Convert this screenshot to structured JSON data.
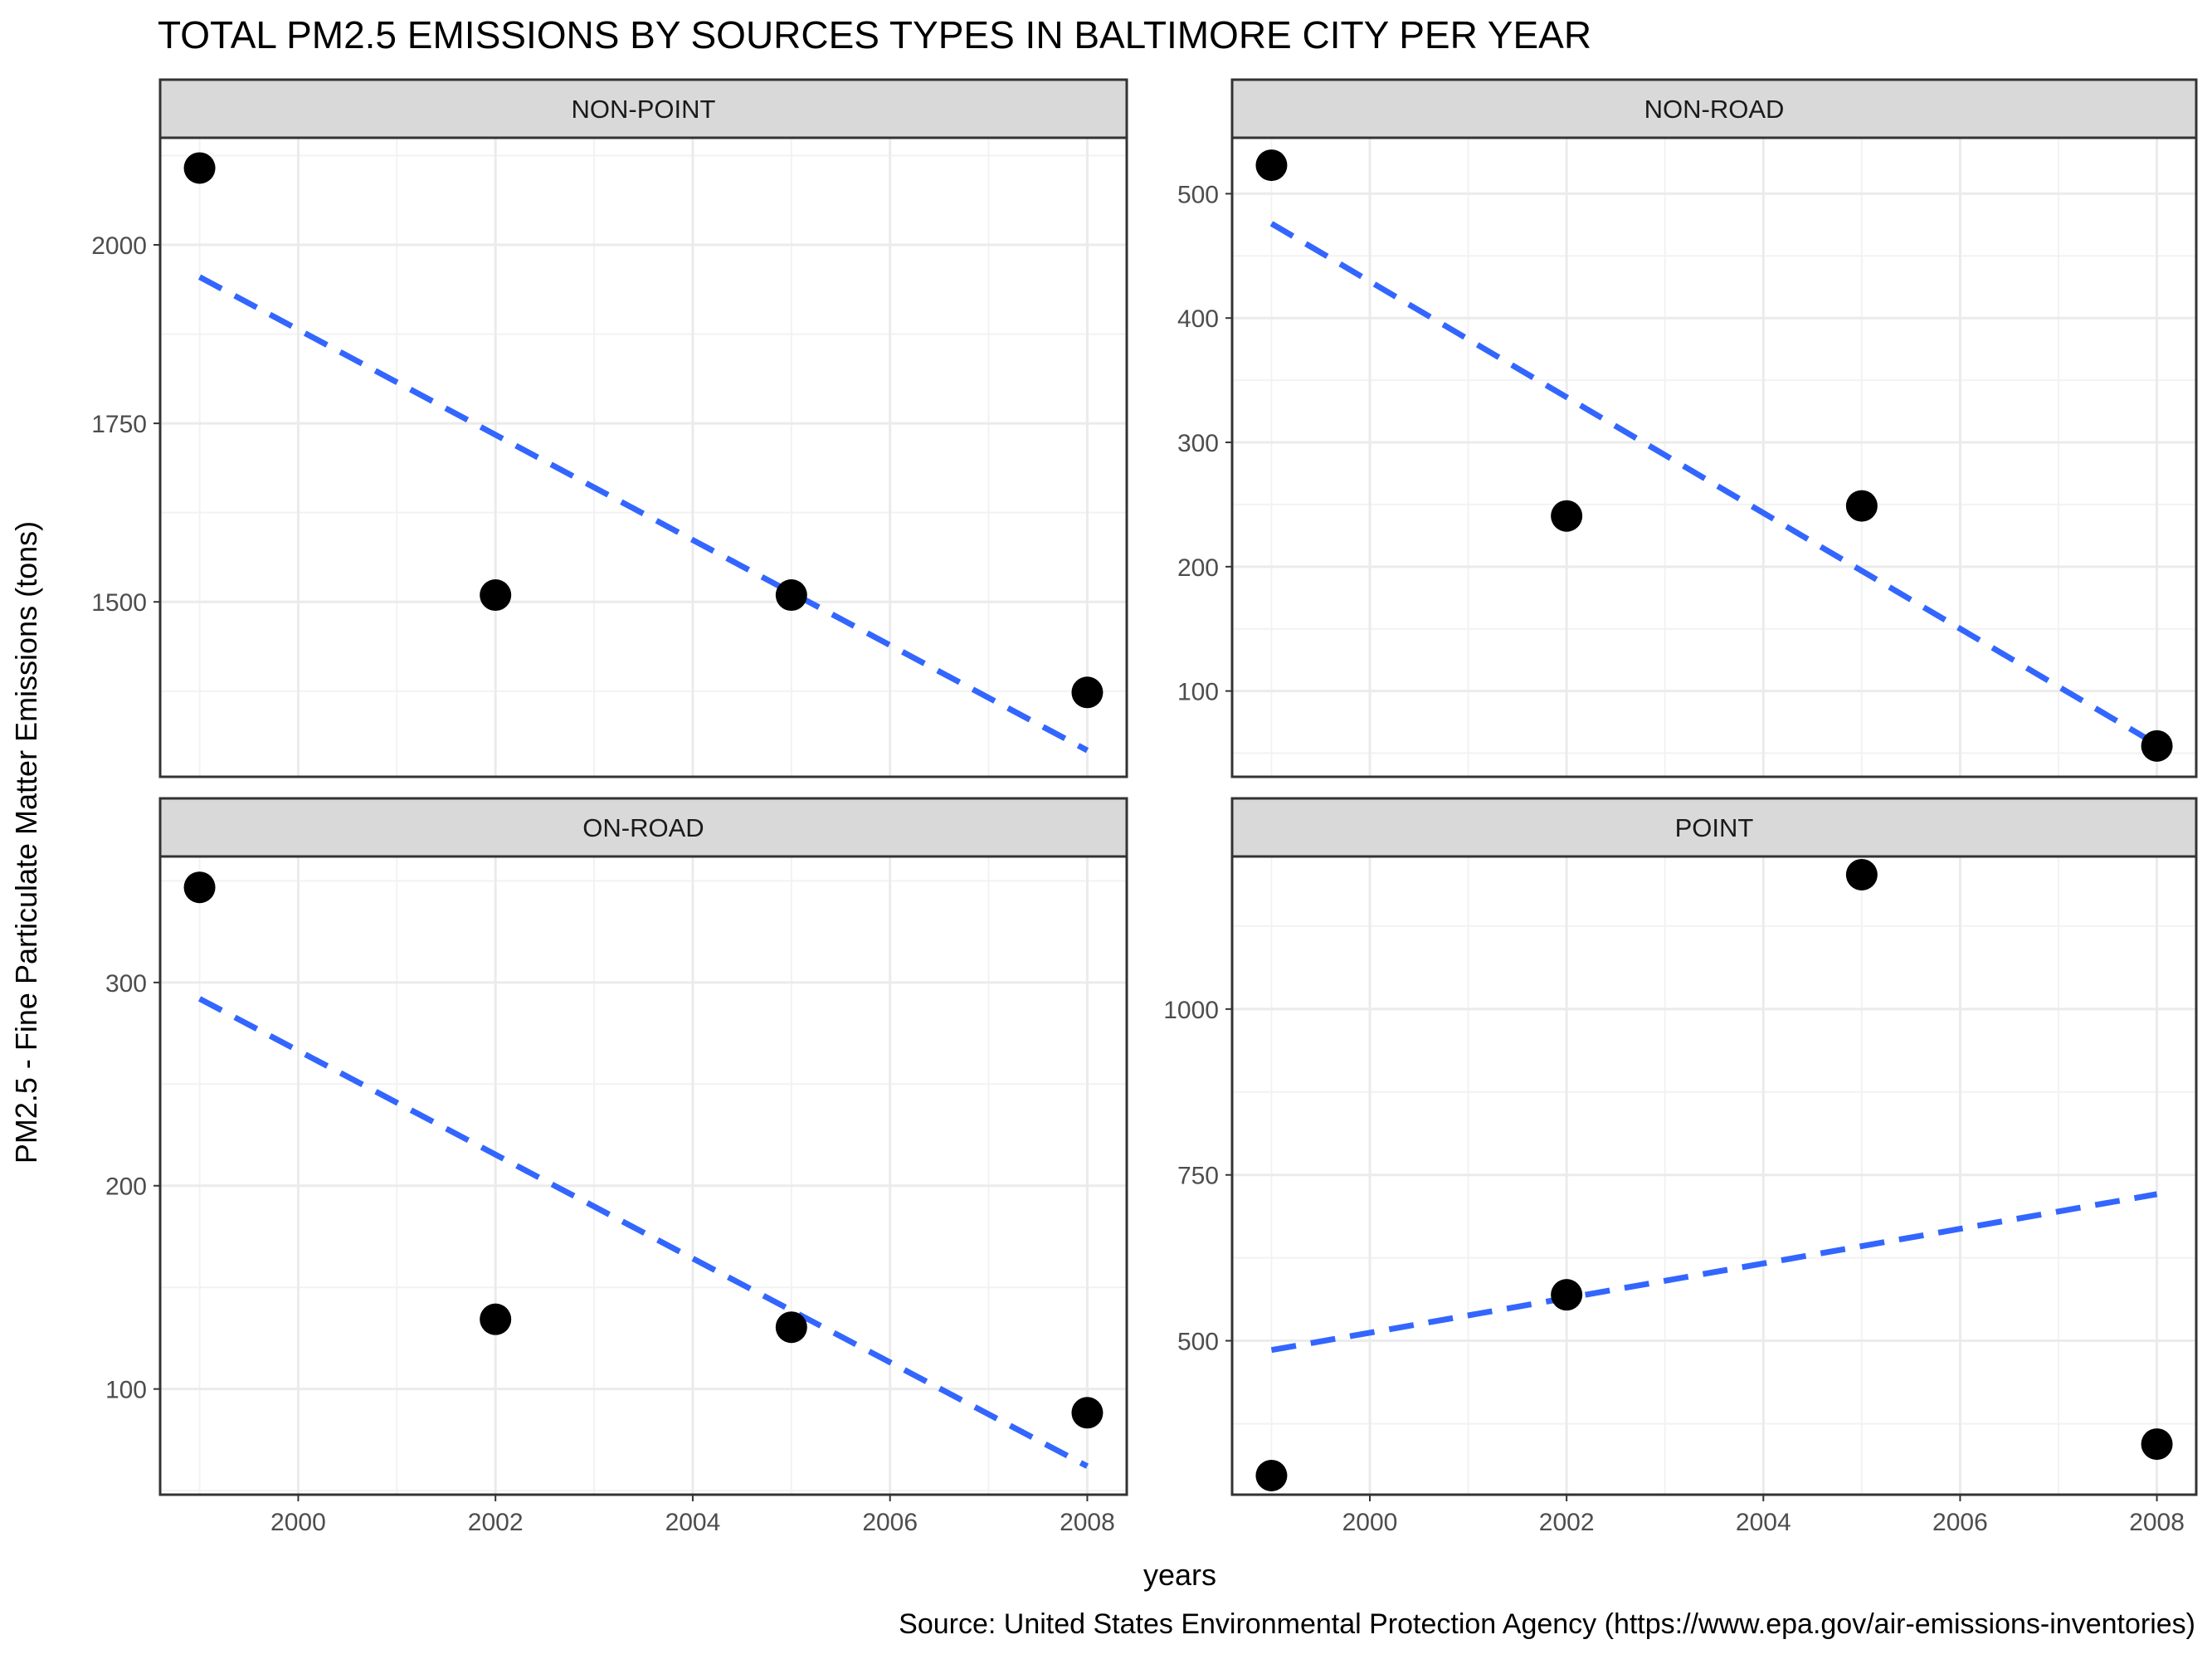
{
  "chart_data": {
    "type": "scatter",
    "title": "TOTAL PM2.5 EMISSIONS BY SOURCES TYPES IN BALTIMORE CITY PER YEAR",
    "xlabel": "years",
    "ylabel": "PM2.5 - Fine Particulate Matter Emissions (tons)",
    "caption": "Source: United States Environmental Protection Agency (https://www.epa.gov/air-emissions-inventories)",
    "x_ticks": [
      2000,
      2002,
      2004,
      2006,
      2008
    ],
    "xlim": [
      1998.6,
      2008.4
    ],
    "grid": true,
    "trend_color": "#3366FF",
    "point_color": "#000000",
    "strip_color": "#D9D9D9",
    "facets": [
      {
        "name": "NON-POINT",
        "x": [
          1999,
          2002,
          2005,
          2008
        ],
        "y": [
          2107.6,
          1509.5,
          1509.5,
          1373.2
        ],
        "ylim": [
          1255,
          2150
        ],
        "y_ticks": [
          1500,
          1750,
          2000
        ],
        "trend": [
          [
            1999,
            1955
          ],
          [
            2008,
            1292
          ]
        ]
      },
      {
        "name": "NON-ROAD",
        "x": [
          1999,
          2002,
          2005,
          2008
        ],
        "y": [
          522.9,
          240.8,
          248.9,
          55.8
        ],
        "ylim": [
          31,
          545
        ],
        "y_ticks": [
          100,
          200,
          300,
          400,
          500
        ],
        "trend": [
          [
            1999,
            476
          ],
          [
            2008,
            57
          ]
        ]
      },
      {
        "name": "ON-ROAD",
        "x": [
          1999,
          2002,
          2005,
          2008
        ],
        "y": [
          346.8,
          134.3,
          130.4,
          88.3
        ],
        "ylim": [
          48,
          362
        ],
        "y_ticks": [
          100,
          200,
          300
        ],
        "trend": [
          [
            1999,
            292
          ],
          [
            2008,
            62
          ]
        ]
      },
      {
        "name": "POINT",
        "x": [
          1999,
          2002,
          2005,
          2008
        ],
        "y": [
          296.8,
          569.3,
          1202.5,
          344.2
        ],
        "ylim": [
          268,
          1230
        ],
        "y_ticks": [
          500,
          750,
          1000
        ],
        "trend": [
          [
            1999,
            486
          ],
          [
            2008,
            721
          ]
        ]
      }
    ]
  }
}
